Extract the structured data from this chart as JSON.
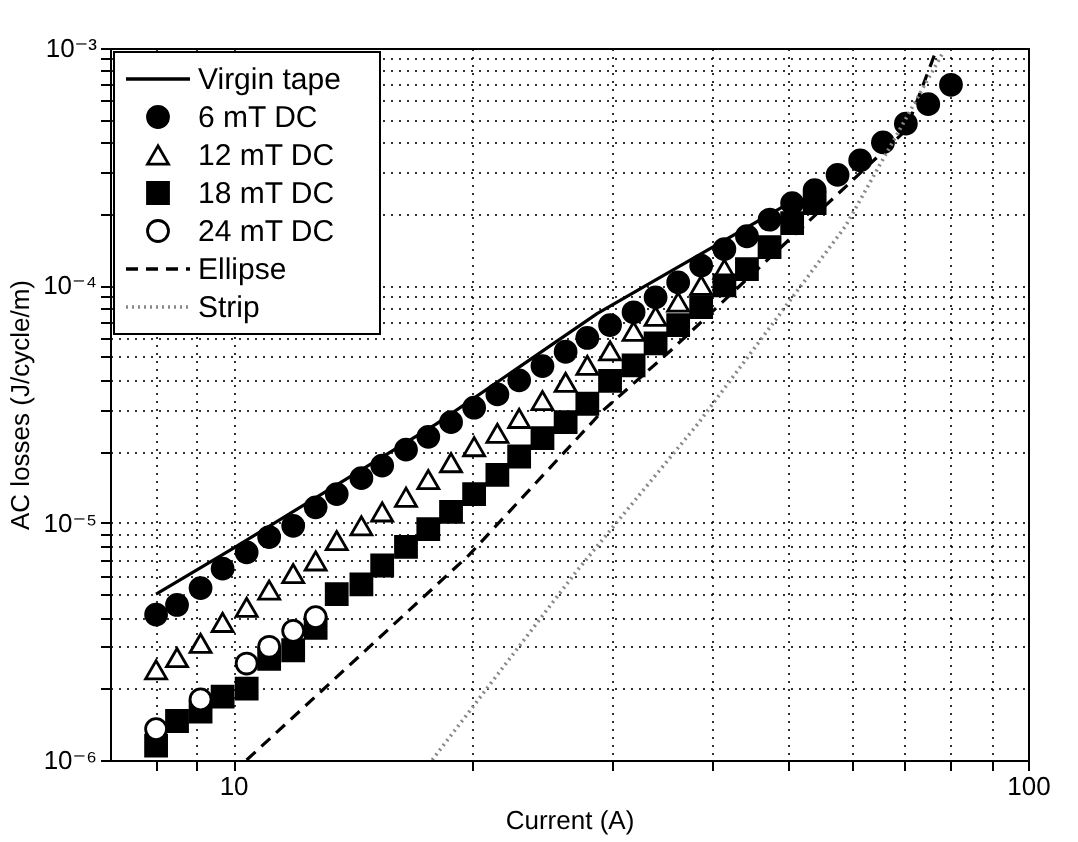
{
  "chart_data": {
    "type": "scatter",
    "xlabel": "Current (A)",
    "ylabel": "AC losses (J/cycle/m)",
    "log": "xy",
    "grid": true,
    "legend": "top left",
    "xlim": [
      7,
      100
    ],
    "ylim": [
      1e-06,
      0.001
    ],
    "xticks": [
      {
        "value": 8,
        "label": null
      },
      {
        "value": 9,
        "label": null
      },
      10,
      {
        "value": 20,
        "label": null
      },
      {
        "value": 30,
        "label": null
      },
      {
        "value": 40,
        "label": null
      },
      {
        "value": 50,
        "label": null
      },
      {
        "value": 60,
        "label": null
      },
      {
        "value": 70,
        "label": null
      },
      {
        "value": 80,
        "label": null
      },
      {
        "value": 90,
        "label": null
      },
      100
    ],
    "yticks": [
      {
        "value": 1e-06,
        "label": "10⁻⁶"
      },
      {
        "value": 2e-06,
        "label": null
      },
      {
        "value": 3e-06,
        "label": null
      },
      {
        "value": 4e-06,
        "label": null
      },
      {
        "value": 5e-06,
        "label": null
      },
      {
        "value": 6e-06,
        "label": null
      },
      {
        "value": 7e-06,
        "label": null
      },
      {
        "value": 8e-06,
        "label": null
      },
      {
        "value": 9e-06,
        "label": null
      },
      {
        "value": 1e-05,
        "label": "10⁻⁵"
      },
      {
        "value": 2e-05,
        "label": null
      },
      {
        "value": 3e-05,
        "label": null
      },
      {
        "value": 4e-05,
        "label": null
      },
      {
        "value": 5e-05,
        "label": null
      },
      {
        "value": 6e-05,
        "label": null
      },
      {
        "value": 7e-05,
        "label": null
      },
      {
        "value": 8e-05,
        "label": null
      },
      {
        "value": 9e-05,
        "label": null
      },
      {
        "value": 0.0001,
        "label": "10⁻⁴"
      },
      {
        "value": 0.0002,
        "label": null
      },
      {
        "value": 0.0003,
        "label": null
      },
      {
        "value": 0.0004,
        "label": null
      },
      {
        "value": 0.0005,
        "label": null
      },
      {
        "value": 0.0006,
        "label": null
      },
      {
        "value": 0.0007,
        "label": null
      },
      {
        "value": 0.0008,
        "label": null
      },
      {
        "value": 0.0009,
        "label": null
      },
      {
        "value": 0.001,
        "label": "10⁻³"
      }
    ],
    "x": [
      8.0,
      8.5,
      9.1,
      9.7,
      10.4,
      11.1,
      11.9,
      12.7,
      13.5,
      14.5,
      15.4,
      16.5,
      17.6,
      18.8,
      20.1,
      21.5,
      22.9,
      24.5,
      26.2,
      27.9,
      29.8,
      31.9,
      34.0,
      36.3,
      38.8,
      41.5,
      44.3,
      47.3,
      50.5,
      53.9,
      57.6,
      61.5,
      65.7,
      70.2,
      74.9,
      80.0
    ],
    "series": [
      {
        "name": "Virgin tape",
        "type": "line",
        "line_style": "solid",
        "color": "#000000",
        "x": [
          8,
          10,
          18,
          28.7,
          51
        ],
        "values": [
          5e-06,
          7.8e-06,
          2.6e-05,
          7.6e-05,
          0.00023
        ]
      },
      {
        "name": "6 mT DC",
        "marker": "circle",
        "color": "#000000",
        "values": [
          4.1e-06,
          4.5e-06,
          5.3e-06,
          6.4e-06,
          7.5e-06,
          8.7e-06,
          9.7e-06,
          1.16e-05,
          1.32e-05,
          1.54e-05,
          1.74e-05,
          2.03e-05,
          2.3e-05,
          2.65e-05,
          3.05e-05,
          3.47e-05,
          3.98e-05,
          4.57e-05,
          5.25e-05,
          6e-05,
          6.8e-05,
          7.7e-05,
          8.9e-05,
          0.000103,
          0.000121,
          0.000142,
          0.000161,
          0.000189,
          0.000222,
          0.000252,
          0.000292,
          0.000336,
          0.0004,
          0.00048,
          0.00058,
          0.0007
        ]
      },
      {
        "name": "12 mT DC",
        "marker": "triangle",
        "color": "#ffffff",
        "values": [
          2.4e-06,
          2.7e-06,
          3.1e-06,
          3.8e-06,
          4.4e-06,
          5.2e-06,
          6.1e-06,
          6.9e-06,
          8.4e-06,
          9.7e-06,
          1.11e-05,
          1.28e-05,
          1.52e-05,
          1.79e-05,
          2.09e-05,
          2.38e-05,
          2.75e-05,
          3.27e-05,
          3.9e-05,
          4.6e-05,
          5.3e-05,
          6.4e-05,
          7.4e-05,
          8.5e-05,
          0.0001,
          0.000117,
          null,
          null,
          null,
          null,
          null,
          null,
          null,
          null,
          null,
          null
        ]
      },
      {
        "name": "18 mT DC",
        "marker": "square",
        "color": "#000000",
        "values": [
          1.15e-06,
          1.46e-06,
          1.6e-06,
          1.85e-06,
          2e-06,
          2.67e-06,
          2.9e-06,
          3.6e-06,
          5e-06,
          5.5e-06,
          6.6e-06,
          7.9e-06,
          9.4e-06,
          1.11e-05,
          1.32e-05,
          1.59e-05,
          1.9e-05,
          2.27e-05,
          2.65e-05,
          3.17e-05,
          3.96e-05,
          4.6e-05,
          5.7e-05,
          6.8e-05,
          8.1e-05,
          0.0001,
          0.000117,
          0.000145,
          0.000183,
          0.000222,
          null,
          null,
          null,
          null,
          null,
          null
        ]
      },
      {
        "name": "24 mT DC",
        "marker": "circle",
        "color": "#ffffff",
        "values": [
          1.35e-06,
          null,
          1.8e-06,
          null,
          2.55e-06,
          3e-06,
          3.5e-06,
          4e-06,
          null,
          null,
          null,
          null,
          null,
          null,
          null,
          null,
          null,
          null,
          null,
          null,
          null,
          null,
          null,
          null,
          null,
          null,
          null,
          null,
          null,
          null,
          null,
          null,
          null,
          null,
          null,
          null
        ]
      },
      {
        "name": "Ellipse",
        "type": "line",
        "line_style": "dashed",
        "color": "#000000",
        "x": [
          10.4,
          19.8,
          29.2,
          35.5,
          70.2,
          76.5
        ],
        "values": [
          1e-06,
          7.3e-06,
          2.97e-05,
          5.3e-05,
          0.00045,
          0.00096
        ]
      },
      {
        "name": "Strip",
        "type": "line",
        "line_style": "dotted",
        "color": "#888888",
        "x": [
          17.8,
          27.0,
          38.4,
          58.9,
          78.2
        ],
        "values": [
          1e-06,
          6.2e-06,
          2.6e-05,
          0.000177,
          0.00096
        ]
      }
    ]
  }
}
